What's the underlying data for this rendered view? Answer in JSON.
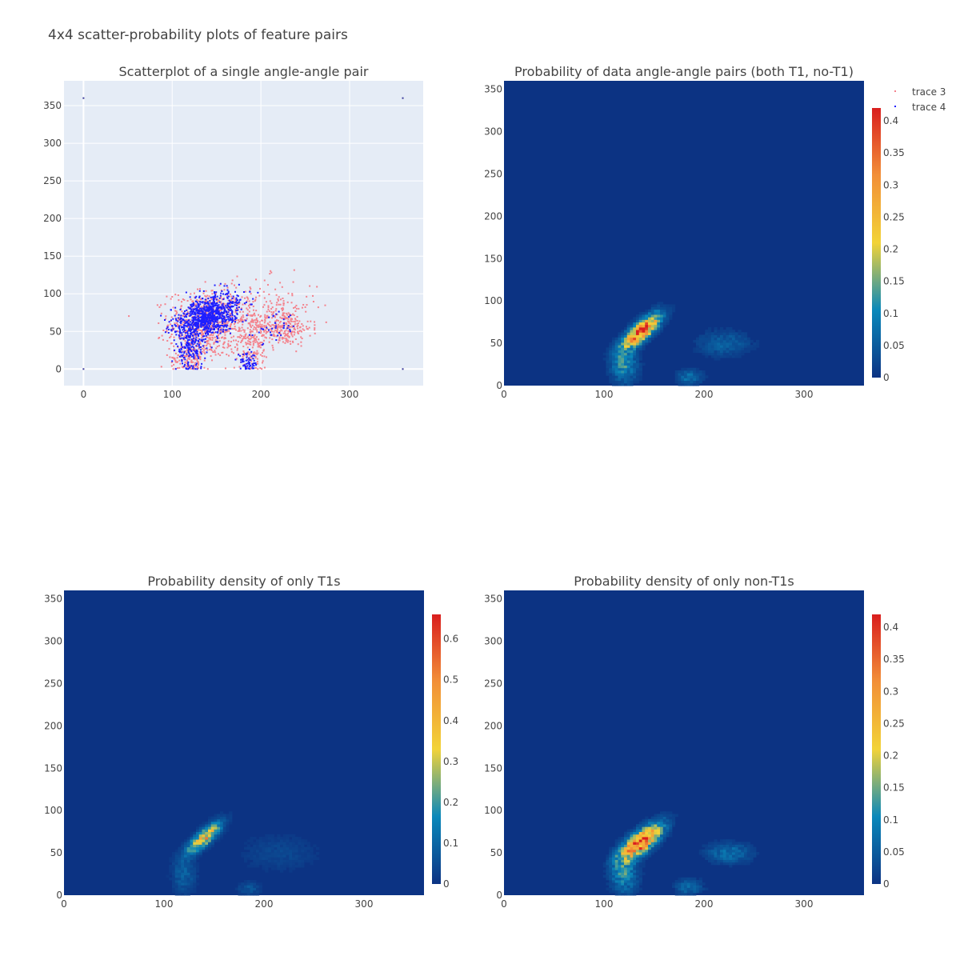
{
  "title": "4x4 scatter-probability plots of feature pairs",
  "colors": {
    "plot_bg": "#e5ecf6",
    "grid": "#ffffff",
    "trace3": "#f4828c",
    "trace4": "#1f1fff",
    "heat_bg": "#0c3383"
  },
  "legend": {
    "position": "top-right",
    "entries": [
      "trace 3",
      "trace 4"
    ]
  },
  "colorscale": [
    "#0c3383",
    "#0a88ba",
    "#f2d338",
    "#f28f38",
    "#d91e1e"
  ],
  "chart_data": [
    {
      "id": "scatter",
      "type": "scatter",
      "title": "Scatterplot of a single angle-angle pair",
      "xlabel": "",
      "ylabel": "",
      "xlim": [
        -22,
        383
      ],
      "ylim": [
        -22,
        383
      ],
      "xticks": [
        0,
        100,
        200,
        300
      ],
      "yticks": [
        0,
        50,
        100,
        150,
        200,
        250,
        300,
        350
      ],
      "grid": true,
      "series": [
        {
          "name": "trace 3",
          "clusters": [
            {
              "cx": 140,
              "cy": 60,
              "sx": 22,
              "sy": 22,
              "n": 700
            },
            {
              "cx": 225,
              "cy": 55,
              "sx": 16,
              "sy": 12,
              "n": 260
            },
            {
              "cx": 190,
              "cy": 35,
              "sx": 10,
              "sy": 22,
              "n": 180
            },
            {
              "cx": 120,
              "cy": 15,
              "sx": 10,
              "sy": 12,
              "n": 140
            },
            {
              "cx": 205,
              "cy": 85,
              "sx": 30,
              "sy": 18,
              "n": 140
            }
          ]
        },
        {
          "name": "trace 4",
          "clusters": [
            {
              "cx": 140,
              "cy": 70,
              "sx": 14,
              "sy": 12,
              "n": 900
            },
            {
              "cx": 120,
              "cy": 25,
              "sx": 8,
              "sy": 14,
              "n": 160
            },
            {
              "cx": 185,
              "cy": 8,
              "sx": 6,
              "sy": 6,
              "n": 60
            },
            {
              "cx": 215,
              "cy": 55,
              "sx": 12,
              "sy": 10,
              "n": 40
            }
          ]
        }
      ],
      "corner_points": [
        [
          0,
          360
        ],
        [
          360,
          360
        ],
        [
          0,
          0
        ],
        [
          360,
          0
        ]
      ]
    },
    {
      "id": "prob-all",
      "type": "heatmap",
      "title": "Probability of data angle-angle pairs (both T1, no-T1)",
      "xlabel": "",
      "ylabel": "",
      "xlim": [
        0,
        360
      ],
      "ylim": [
        0,
        360
      ],
      "xticks": [
        0,
        100,
        200,
        300
      ],
      "yticks": [
        0,
        50,
        100,
        150,
        200,
        250,
        300,
        350
      ],
      "zmax": 0.42,
      "colorbar_ticks": [
        0,
        0.05,
        0.1,
        0.15,
        0.2,
        0.25,
        0.3,
        0.35,
        0.4
      ],
      "hotspots": [
        {
          "cx": 138,
          "cy": 65,
          "sx": 13,
          "sy": 6,
          "rot": 48,
          "amp": 0.42
        },
        {
          "cx": 120,
          "cy": 25,
          "sx": 7,
          "sy": 15,
          "rot": 0,
          "amp": 0.12
        },
        {
          "cx": 185,
          "cy": 10,
          "sx": 7,
          "sy": 6,
          "rot": 0,
          "amp": 0.08
        },
        {
          "cx": 220,
          "cy": 50,
          "sx": 14,
          "sy": 10,
          "rot": 0,
          "amp": 0.06
        }
      ]
    },
    {
      "id": "prob-t1",
      "type": "heatmap",
      "title": "Probability density of only T1s",
      "xlabel": "",
      "ylabel": "",
      "xlim": [
        0,
        360
      ],
      "ylim": [
        0,
        360
      ],
      "xticks": [
        0,
        100,
        200,
        300
      ],
      "yticks": [
        0,
        50,
        100,
        150,
        200,
        250,
        300,
        350
      ],
      "zmax": 0.66,
      "colorbar_ticks": [
        0,
        0.1,
        0.2,
        0.3,
        0.4,
        0.5,
        0.6
      ],
      "hotspots": [
        {
          "cx": 140,
          "cy": 68,
          "sx": 12,
          "sy": 5,
          "rot": 48,
          "amp": 0.45
        },
        {
          "cx": 120,
          "cy": 25,
          "sx": 6,
          "sy": 14,
          "rot": 0,
          "amp": 0.1
        },
        {
          "cx": 185,
          "cy": 8,
          "sx": 6,
          "sy": 5,
          "rot": 0,
          "amp": 0.07
        },
        {
          "cx": 215,
          "cy": 50,
          "sx": 20,
          "sy": 14,
          "rot": 0,
          "amp": 0.04
        }
      ]
    },
    {
      "id": "prob-nont1",
      "type": "heatmap",
      "title": "Probability density of only non-T1s",
      "xlabel": "",
      "ylabel": "",
      "xlim": [
        0,
        360
      ],
      "ylim": [
        0,
        360
      ],
      "xticks": [
        0,
        100,
        200,
        300
      ],
      "yticks": [
        0,
        50,
        100,
        150,
        200,
        250,
        300,
        350
      ],
      "zmax": 0.42,
      "colorbar_ticks": [
        0,
        0.05,
        0.1,
        0.15,
        0.2,
        0.25,
        0.3,
        0.35,
        0.4
      ],
      "hotspots": [
        {
          "cx": 137,
          "cy": 63,
          "sx": 14,
          "sy": 7,
          "rot": 45,
          "amp": 0.42
        },
        {
          "cx": 120,
          "cy": 25,
          "sx": 7,
          "sy": 15,
          "rot": 0,
          "amp": 0.12
        },
        {
          "cx": 185,
          "cy": 10,
          "sx": 7,
          "sy": 6,
          "rot": 0,
          "amp": 0.08
        },
        {
          "cx": 225,
          "cy": 50,
          "sx": 12,
          "sy": 8,
          "rot": 0,
          "amp": 0.08
        }
      ]
    }
  ]
}
